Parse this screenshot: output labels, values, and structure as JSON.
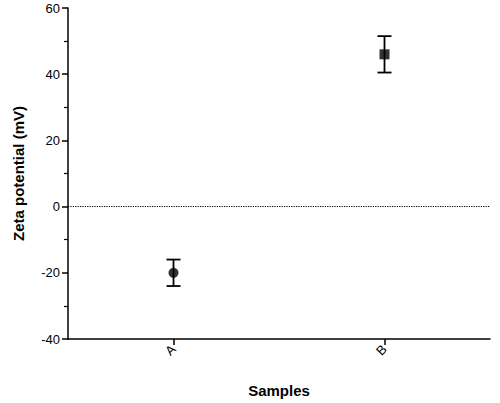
{
  "chart_data": {
    "type": "scatter",
    "x_label": "Samples",
    "y_label": "Zeta potential (mV)",
    "categories": [
      "A",
      "B"
    ],
    "series": [
      {
        "marker": "circle",
        "color": "#000000",
        "values": [
          -20,
          null
        ],
        "errors": [
          4,
          null
        ]
      },
      {
        "marker": "rect",
        "color": "#000000",
        "values": [
          null,
          46
        ],
        "errors": [
          null,
          5.5
        ]
      }
    ],
    "reference_line": 0,
    "ylim": [
      -40,
      60
    ],
    "yticks": [
      -40,
      -20,
      0,
      20,
      40,
      60
    ],
    "grid": false
  }
}
